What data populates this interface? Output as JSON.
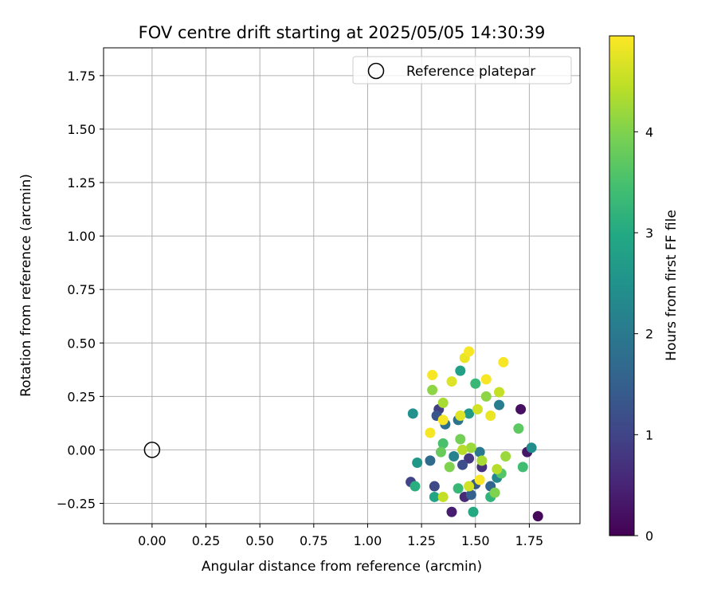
{
  "chart_data": {
    "type": "scatter",
    "title": "FOV centre drift starting at 2025/05/05 14:30:39",
    "xlabel": "Angular distance from reference (arcmin)",
    "ylabel": "Rotation from reference (arcmin)",
    "xlim": [
      -0.225,
      1.985
    ],
    "ylim": [
      -0.345,
      1.88
    ],
    "xticks": [
      "0.00",
      "0.25",
      "0.50",
      "0.75",
      "1.00",
      "1.25",
      "1.50",
      "1.75"
    ],
    "xtick_values": [
      0,
      0.25,
      0.5,
      0.75,
      1.0,
      1.25,
      1.5,
      1.75
    ],
    "yticks": [
      "−0.25",
      "0.00",
      "0.25",
      "0.50",
      "0.75",
      "1.00",
      "1.25",
      "1.50",
      "1.75"
    ],
    "ytick_values": [
      -0.25,
      0,
      0.25,
      0.5,
      0.75,
      1.0,
      1.25,
      1.5,
      1.75
    ],
    "grid": true,
    "legend": {
      "position": "top-right",
      "label": "Reference platepar"
    },
    "reference_point": {
      "x": 0.0,
      "y": 0.0
    },
    "colorbar": {
      "label": "Hours from first FF file",
      "colormap": "viridis",
      "range": [
        0,
        4.95
      ],
      "ticks": [
        "0",
        "1",
        "2",
        "3",
        "4"
      ],
      "tick_values": [
        0,
        1,
        2,
        3,
        4
      ]
    },
    "series": [
      {
        "marker": "filled-circle",
        "points": [
          {
            "x": 1.79,
            "y": -0.31,
            "h": 0.1
          },
          {
            "x": 1.71,
            "y": 0.19,
            "h": 0.2
          },
          {
            "x": 1.74,
            "y": -0.01,
            "h": 0.3
          },
          {
            "x": 1.39,
            "y": -0.29,
            "h": 0.4
          },
          {
            "x": 1.45,
            "y": -0.22,
            "h": 0.6
          },
          {
            "x": 1.53,
            "y": -0.08,
            "h": 0.7
          },
          {
            "x": 1.47,
            "y": -0.04,
            "h": 0.8
          },
          {
            "x": 1.33,
            "y": 0.19,
            "h": 0.9
          },
          {
            "x": 1.2,
            "y": -0.15,
            "h": 1.0
          },
          {
            "x": 1.31,
            "y": -0.17,
            "h": 1.1
          },
          {
            "x": 1.44,
            "y": -0.07,
            "h": 1.2
          },
          {
            "x": 1.32,
            "y": 0.16,
            "h": 1.3
          },
          {
            "x": 1.5,
            "y": -0.16,
            "h": 1.4
          },
          {
            "x": 1.48,
            "y": -0.21,
            "h": 1.5
          },
          {
            "x": 1.57,
            "y": -0.17,
            "h": 1.6
          },
          {
            "x": 1.29,
            "y": -0.05,
            "h": 1.7
          },
          {
            "x": 1.36,
            "y": 0.12,
            "h": 1.8
          },
          {
            "x": 1.42,
            "y": 0.14,
            "h": 1.9
          },
          {
            "x": 1.52,
            "y": -0.01,
            "h": 2.0
          },
          {
            "x": 1.61,
            "y": 0.21,
            "h": 2.1
          },
          {
            "x": 1.4,
            "y": -0.03,
            "h": 2.2
          },
          {
            "x": 1.6,
            "y": -0.13,
            "h": 2.3
          },
          {
            "x": 1.76,
            "y": 0.01,
            "h": 2.4
          },
          {
            "x": 1.21,
            "y": 0.17,
            "h": 2.5
          },
          {
            "x": 1.23,
            "y": -0.06,
            "h": 2.6
          },
          {
            "x": 1.47,
            "y": 0.17,
            "h": 2.7
          },
          {
            "x": 1.43,
            "y": 0.37,
            "h": 2.8
          },
          {
            "x": 1.31,
            "y": -0.22,
            "h": 2.9
          },
          {
            "x": 1.49,
            "y": -0.29,
            "h": 3.0
          },
          {
            "x": 1.22,
            "y": -0.17,
            "h": 3.1
          },
          {
            "x": 1.57,
            "y": -0.22,
            "h": 3.2
          },
          {
            "x": 1.42,
            "y": -0.18,
            "h": 3.3
          },
          {
            "x": 1.5,
            "y": 0.31,
            "h": 3.3
          },
          {
            "x": 1.72,
            "y": -0.08,
            "h": 3.4
          },
          {
            "x": 1.35,
            "y": 0.03,
            "h": 3.5
          },
          {
            "x": 1.62,
            "y": -0.11,
            "h": 3.6
          },
          {
            "x": 1.7,
            "y": 0.1,
            "h": 3.7
          },
          {
            "x": 1.34,
            "y": -0.01,
            "h": 3.8
          },
          {
            "x": 1.43,
            "y": 0.05,
            "h": 3.9
          },
          {
            "x": 1.59,
            "y": -0.2,
            "h": 4.0
          },
          {
            "x": 1.38,
            "y": -0.08,
            "h": 4.0
          },
          {
            "x": 1.3,
            "y": 0.28,
            "h": 4.1
          },
          {
            "x": 1.55,
            "y": 0.25,
            "h": 4.1
          },
          {
            "x": 1.64,
            "y": -0.03,
            "h": 4.2
          },
          {
            "x": 1.48,
            "y": 0.01,
            "h": 4.2
          },
          {
            "x": 1.35,
            "y": 0.22,
            "h": 4.3
          },
          {
            "x": 1.53,
            "y": -0.05,
            "h": 4.3
          },
          {
            "x": 1.6,
            "y": -0.09,
            "h": 4.4
          },
          {
            "x": 1.44,
            "y": 0.0,
            "h": 4.4
          },
          {
            "x": 1.35,
            "y": -0.22,
            "h": 4.5
          },
          {
            "x": 1.61,
            "y": 0.27,
            "h": 4.5
          },
          {
            "x": 1.47,
            "y": -0.17,
            "h": 4.6
          },
          {
            "x": 1.51,
            "y": 0.19,
            "h": 4.6
          },
          {
            "x": 1.39,
            "y": 0.32,
            "h": 4.7
          },
          {
            "x": 1.43,
            "y": 0.16,
            "h": 4.7
          },
          {
            "x": 1.57,
            "y": 0.16,
            "h": 4.8
          },
          {
            "x": 1.45,
            "y": 0.43,
            "h": 4.8
          },
          {
            "x": 1.47,
            "y": 0.46,
            "h": 4.9
          },
          {
            "x": 1.63,
            "y": 0.41,
            "h": 4.9
          },
          {
            "x": 1.55,
            "y": 0.33,
            "h": 4.9
          },
          {
            "x": 1.3,
            "y": 0.35,
            "h": 4.9
          },
          {
            "x": 1.29,
            "y": 0.08,
            "h": 4.9
          },
          {
            "x": 1.52,
            "y": -0.14,
            "h": 4.9
          },
          {
            "x": 1.35,
            "y": 0.14,
            "h": 4.9
          }
        ]
      }
    ]
  }
}
